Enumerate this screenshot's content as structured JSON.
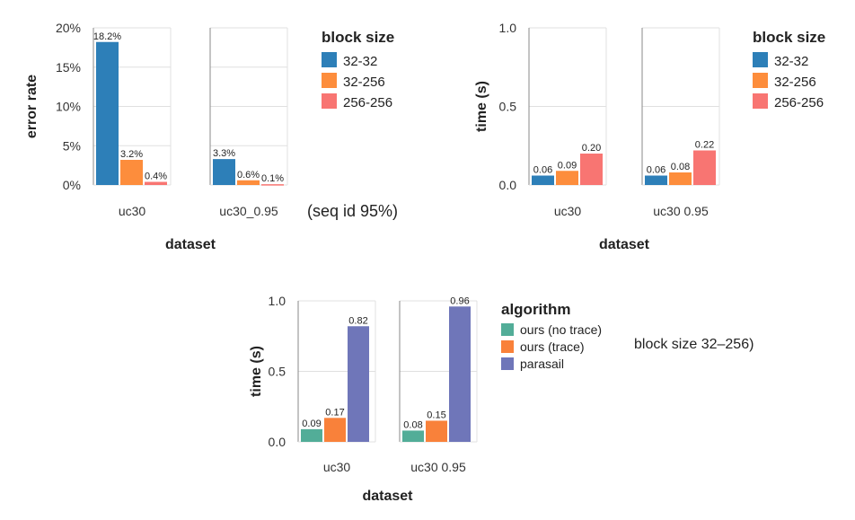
{
  "colors": {
    "blue": "#2d7fb8",
    "orange": "#fd8d3c",
    "salmon": "#f87572",
    "teal": "#52ad98",
    "orange2": "#f9813a",
    "purple": "#6f76b9",
    "grid": "#e0e0e0",
    "axis": "#888888"
  },
  "notes": {
    "seq_id": "(seq id 95%)",
    "block_size": "block size 32–256)"
  },
  "chart_data": [
    {
      "type": "bar",
      "ylabel": "error rate",
      "xlabel": "dataset",
      "ylim": [
        0,
        20
      ],
      "yticks": [
        "0%",
        "5%",
        "10%",
        "15%",
        "20%"
      ],
      "yticks_values": [
        0,
        5,
        10,
        15,
        20
      ],
      "legend_title": "block size",
      "legend_position": "right",
      "grid": true,
      "categories": [
        "uc30",
        "uc30_0.95"
      ],
      "series": [
        {
          "name": "32-32",
          "color": "#2d7fb8",
          "values": [
            18.2,
            3.3
          ],
          "labels": [
            "18.2%",
            "3.3%"
          ]
        },
        {
          "name": "32-256",
          "color": "#fd8d3c",
          "values": [
            3.2,
            0.6
          ],
          "labels": [
            "3.2%",
            "0.6%"
          ]
        },
        {
          "name": "256-256",
          "color": "#f87572",
          "values": [
            0.4,
            0.1
          ],
          "labels": [
            "0.4%",
            "0.1%"
          ]
        }
      ]
    },
    {
      "type": "bar",
      "ylabel": "time (s)",
      "xlabel": "dataset",
      "ylim": [
        0,
        1
      ],
      "yticks": [
        "0.0",
        "0.5",
        "1.0"
      ],
      "yticks_values": [
        0,
        0.5,
        1.0
      ],
      "legend_title": "block size",
      "legend_position": "right",
      "grid": true,
      "categories": [
        "uc30",
        "uc30 0.95"
      ],
      "series": [
        {
          "name": "32-32",
          "color": "#2d7fb8",
          "values": [
            0.06,
            0.06
          ],
          "labels": [
            "0.06",
            "0.06"
          ]
        },
        {
          "name": "32-256",
          "color": "#fd8d3c",
          "values": [
            0.09,
            0.08
          ],
          "labels": [
            "0.09",
            "0.08"
          ]
        },
        {
          "name": "256-256",
          "color": "#f87572",
          "values": [
            0.2,
            0.22
          ],
          "labels": [
            "0.20",
            "0.22"
          ]
        }
      ]
    },
    {
      "type": "bar",
      "ylabel": "time (s)",
      "xlabel": "dataset",
      "ylim": [
        0,
        1
      ],
      "yticks": [
        "0.0",
        "0.5",
        "1.0"
      ],
      "yticks_values": [
        0,
        0.5,
        1.0
      ],
      "legend_title": "algorithm",
      "legend_position": "right",
      "grid": true,
      "categories": [
        "uc30",
        "uc30 0.95"
      ],
      "series": [
        {
          "name": "ours (no trace)",
          "color": "#52ad98",
          "values": [
            0.09,
            0.08
          ],
          "labels": [
            "0.09",
            "0.08"
          ]
        },
        {
          "name": "ours (trace)",
          "color": "#f9813a",
          "values": [
            0.17,
            0.15
          ],
          "labels": [
            "0.17",
            "0.15"
          ]
        },
        {
          "name": "parasail",
          "color": "#6f76b9",
          "values": [
            0.82,
            0.96
          ],
          "labels": [
            "0.82",
            "0.96"
          ]
        }
      ]
    }
  ]
}
